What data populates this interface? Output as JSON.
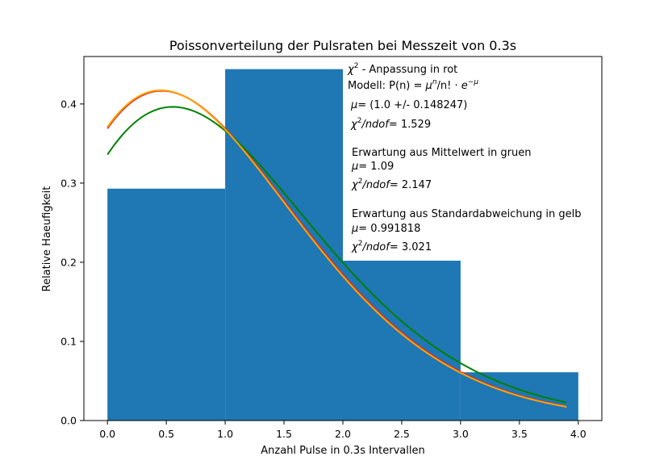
{
  "chart_data": {
    "type": "bar",
    "title": "Poissonverteilung der Pulsraten bei Messzeit von 0.3s",
    "xlabel": "Anzahl Pulse in 0.3s Intervallen",
    "ylabel": "Relative Haeufigkeit",
    "xlim": [
      -0.2,
      4.2
    ],
    "ylim": [
      0,
      0.46
    ],
    "xticks": [
      "0.0",
      "0.5",
      "1.0",
      "1.5",
      "2.0",
      "2.5",
      "3.0",
      "3.5",
      "4.0"
    ],
    "yticks": [
      "0.0",
      "0.1",
      "0.2",
      "0.3",
      "0.4"
    ],
    "histogram": {
      "color": "#1f77b4",
      "bins": [
        {
          "x0": 0,
          "x1": 1,
          "value": 0.293
        },
        {
          "x0": 1,
          "x1": 2,
          "value": 0.444
        },
        {
          "x0": 2,
          "x1": 3,
          "value": 0.202
        },
        {
          "x0": 3,
          "x1": 4,
          "value": 0.061
        }
      ]
    },
    "curves": [
      {
        "color": "#d62728",
        "mu": 1.0,
        "scale": 0.369
      },
      {
        "color": "#008000",
        "mu": 1.09,
        "scale": 0.336
      },
      {
        "color": "#ffa500",
        "mu": 0.991818,
        "scale": 0.371
      }
    ],
    "curve_x_range": [
      0,
      3.9
    ],
    "annotations": {
      "fit_title": " - Anpassung in rot",
      "model_prefix": "Modell: P(n) = ",
      "model_sep": "/n!  · ",
      "fit_mu": "= (1.0 +/- 0.148247)",
      "fit_chi": "= 1.529",
      "mean_title": "Erwartung aus Mittelwert in gruen",
      "mean_mu": "= 1.09",
      "mean_chi": "= 2.147",
      "std_title": "Erwartung aus Standardabweichung in gelb",
      "std_mu": "= 0.991818",
      "std_chi": "= 3.021"
    }
  }
}
